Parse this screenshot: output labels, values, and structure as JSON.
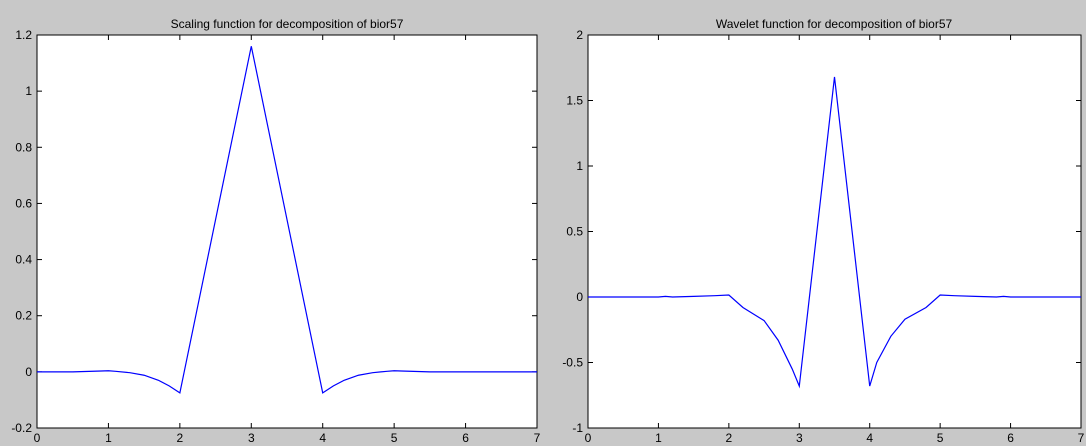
{
  "chart_data": [
    {
      "type": "line",
      "title": "Scaling function for decomposition of bior57",
      "xlim": [
        0,
        7
      ],
      "ylim": [
        -0.2,
        1.2
      ],
      "xticks": [
        "0",
        "1",
        "2",
        "3",
        "4",
        "5",
        "6",
        "7"
      ],
      "yticks": [
        "-0.2",
        "0",
        "0.2",
        "0.4",
        "0.6",
        "0.8",
        "1",
        "1.2"
      ],
      "grid": false,
      "color": "#0000ff",
      "series": [
        {
          "x": [
            0,
            0.5,
            0.9,
            1.0,
            1.1,
            1.3,
            1.5,
            1.7,
            1.85,
            2.0,
            3.0,
            4.0,
            4.15,
            4.3,
            4.5,
            4.7,
            4.9,
            5.0,
            5.1,
            5.5,
            6.0,
            7.0
          ],
          "y": [
            0,
            0,
            0.003,
            0.004,
            0.002,
            -0.003,
            -0.012,
            -0.03,
            -0.05,
            -0.075,
            1.16,
            -0.075,
            -0.05,
            -0.03,
            -0.012,
            -0.003,
            0.002,
            0.004,
            0.003,
            0,
            0,
            0
          ]
        }
      ]
    },
    {
      "type": "line",
      "title": "Wavelet function for decomposition of bior57",
      "xlim": [
        0,
        7
      ],
      "ylim": [
        -1,
        2
      ],
      "xticks": [
        "0",
        "1",
        "2",
        "3",
        "4",
        "5",
        "6",
        "7"
      ],
      "yticks": [
        "-1",
        "-0.5",
        "0",
        "0.5",
        "1",
        "1.5",
        "2"
      ],
      "grid": false,
      "color": "#0000ff",
      "series": [
        {
          "x": [
            0,
            0.5,
            1.0,
            1.1,
            1.2,
            1.5,
            1.8,
            2.0,
            2.2,
            2.5,
            2.7,
            2.9,
            3.0,
            3.5,
            4.0,
            4.1,
            4.3,
            4.5,
            4.8,
            5.0,
            5.2,
            5.5,
            5.8,
            5.9,
            6.0,
            6.5,
            7.0
          ],
          "y": [
            0,
            0,
            0,
            0.005,
            0,
            0.005,
            0.01,
            0.015,
            -0.08,
            -0.18,
            -0.33,
            -0.55,
            -0.68,
            1.68,
            -0.68,
            -0.5,
            -0.3,
            -0.17,
            -0.08,
            0.015,
            0.01,
            0.005,
            0,
            0.005,
            0,
            0,
            0
          ]
        }
      ]
    }
  ]
}
